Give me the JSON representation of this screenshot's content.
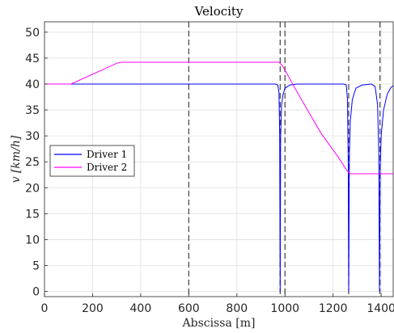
{
  "chart_data": {
    "type": "line",
    "title": "Velocity",
    "xlabel": "Abscissa [m]",
    "ylabel": "v [km/h]",
    "xlim": [
      0,
      1450
    ],
    "ylim": [
      -1,
      52
    ],
    "xticks": [
      0,
      200,
      400,
      600,
      800,
      1000,
      1200,
      1400
    ],
    "yticks": [
      0,
      5,
      10,
      15,
      20,
      25,
      30,
      35,
      40,
      45,
      50
    ],
    "grid": true,
    "legend_position": "left",
    "vlines": [
      600,
      980,
      1000,
      1265,
      1395
    ],
    "series": [
      {
        "name": "Driver 1",
        "color": "#0000ff",
        "points": [
          [
            0,
            40
          ],
          [
            960,
            40
          ],
          [
            970,
            39.8
          ],
          [
            975,
            38.5
          ],
          [
            978,
            30
          ],
          [
            980,
            0
          ],
          [
            982,
            30
          ],
          [
            986,
            36
          ],
          [
            992,
            38
          ],
          [
            1000,
            39.2
          ],
          [
            1020,
            39.8
          ],
          [
            1050,
            40
          ],
          [
            1245,
            40
          ],
          [
            1255,
            39.8
          ],
          [
            1260,
            37
          ],
          [
            1263,
            25
          ],
          [
            1265,
            0
          ],
          [
            1268,
            27
          ],
          [
            1272,
            33
          ],
          [
            1280,
            37
          ],
          [
            1295,
            39.2
          ],
          [
            1320,
            39.8
          ],
          [
            1360,
            40
          ],
          [
            1375,
            39.5
          ],
          [
            1385,
            36
          ],
          [
            1390,
            27
          ],
          [
            1393,
            0
          ],
          [
            1396,
            24
          ],
          [
            1400,
            30
          ],
          [
            1410,
            35
          ],
          [
            1425,
            38
          ],
          [
            1440,
            39.3
          ],
          [
            1450,
            39.7
          ]
        ]
      },
      {
        "name": "Driver 2",
        "color": "#ff00ff",
        "points": [
          [
            0,
            40
          ],
          [
            110,
            40
          ],
          [
            300,
            44
          ],
          [
            320,
            44.2
          ],
          [
            975,
            44.2
          ],
          [
            990,
            43.5
          ],
          [
            1050,
            38.5
          ],
          [
            1150,
            30.5
          ],
          [
            1220,
            26
          ],
          [
            1255,
            23.5
          ],
          [
            1270,
            22.7
          ],
          [
            1450,
            22.7
          ]
        ]
      }
    ]
  }
}
